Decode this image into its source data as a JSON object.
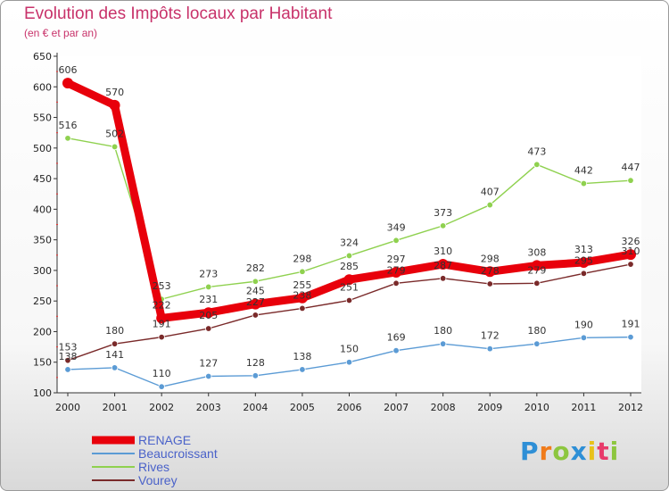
{
  "chart_data": {
    "type": "line",
    "title": "Evolution des Impôts locaux par Habitant",
    "subtitle": "(en € et par an)",
    "xlabel": "",
    "ylabel": "",
    "x": [
      "2000",
      "2001",
      "2002",
      "2003",
      "2004",
      "2005",
      "2006",
      "2007",
      "2008",
      "2009",
      "2010",
      "2011",
      "2012"
    ],
    "ylim": [
      100,
      650
    ],
    "yticks": [
      100,
      150,
      200,
      250,
      300,
      350,
      400,
      450,
      500,
      550,
      600,
      650
    ],
    "grid": false,
    "legend_position": "bottom-left",
    "series": [
      {
        "name": "RENAGE",
        "color": "#e8000b",
        "values": [
          606,
          570,
          222,
          231,
          245,
          255,
          285,
          297,
          310,
          298,
          308,
          313,
          326
        ]
      },
      {
        "name": "Beaucroissant",
        "color": "#5b9bd5",
        "values": [
          138,
          141,
          110,
          127,
          128,
          138,
          150,
          169,
          180,
          172,
          180,
          190,
          191
        ]
      },
      {
        "name": "Rives",
        "color": "#8fd14f",
        "values": [
          516,
          502,
          253,
          273,
          282,
          298,
          324,
          349,
          373,
          407,
          473,
          442,
          447
        ]
      },
      {
        "name": "Vourey",
        "color": "#7a2a2a",
        "values": [
          153,
          180,
          191,
          205,
          227,
          238,
          251,
          279,
          287,
          278,
          279,
          295,
          310
        ]
      }
    ]
  },
  "logo": {
    "text": "Proxiti",
    "colors": [
      "#2e8fd6",
      "#f07b1a",
      "#8dc63f",
      "#2e8fd6",
      "#e8c21a",
      "#e83a6a",
      "#8dc63f"
    ]
  }
}
